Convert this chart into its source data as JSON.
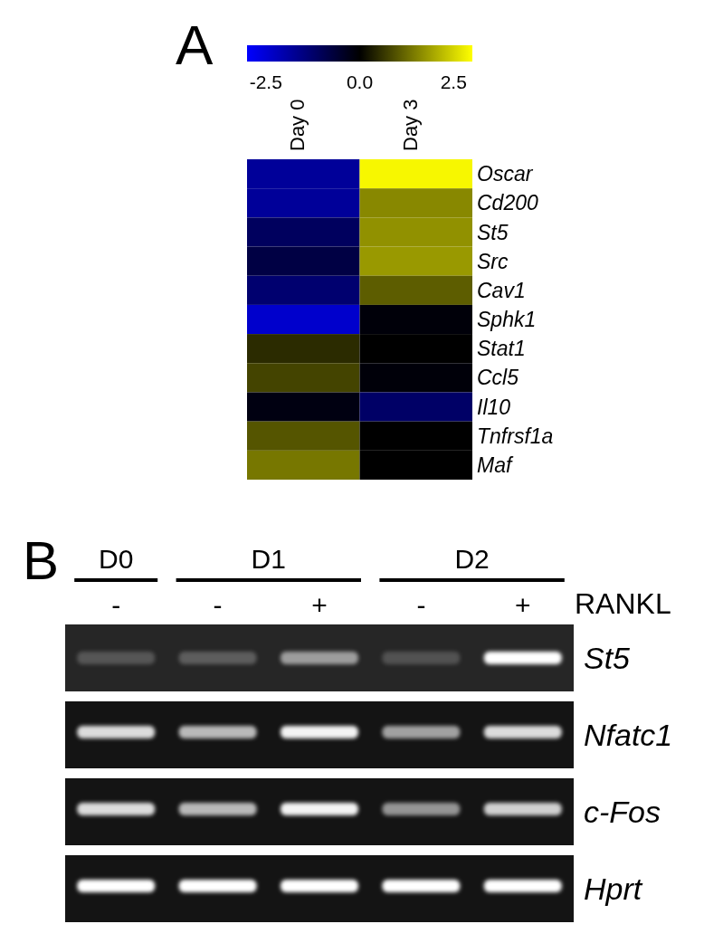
{
  "chart_data": [
    {
      "type": "heatmap",
      "title": "A",
      "categories": [
        "Day 0",
        "Day 3"
      ],
      "y_categories": [
        "Oscar",
        "Cd200",
        "St5",
        "Src",
        "Cav1",
        "Sphk1",
        "Stat1",
        "Ccl5",
        "Il10",
        "Tnfrsf1a",
        "Maf"
      ],
      "cells": [
        [
          -1.8,
          2.9
        ],
        [
          -1.8,
          1.6
        ],
        [
          -1.1,
          1.7
        ],
        [
          -0.8,
          1.8
        ],
        [
          -1.3,
          1.1
        ],
        [
          -2.4,
          -0.1
        ],
        [
          0.5,
          0.0
        ],
        [
          0.8,
          -0.1
        ],
        [
          -0.2,
          -1.2
        ],
        [
          1.0,
          0.0
        ],
        [
          1.4,
          0.0
        ]
      ],
      "clim": [
        -3,
        3
      ],
      "cticks": [
        -2.5,
        {
          "value": 0,
          "label": "0.0"
        },
        2.5
      ]
    },
    {
      "type": "other",
      "title": "B",
      "categories": [
        "-",
        "-",
        "+",
        "-",
        "+"
      ],
      "y_categories": [
        "St5",
        "Nfatc1",
        "c-Fos",
        "Hprt"
      ],
      "xlabel": "RANKL",
      "annotations": [
        "D0",
        "D1",
        "D2"
      ]
    }
  ]
}
